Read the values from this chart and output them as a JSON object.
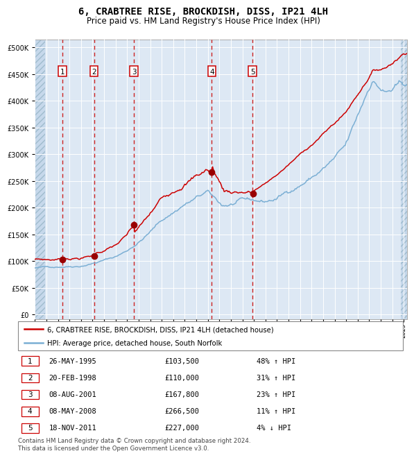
{
  "title": "6, CRABTREE RISE, BROCKDISH, DISS, IP21 4LH",
  "subtitle": "Price paid vs. HM Land Registry's House Price Index (HPI)",
  "title_fontsize": 10,
  "subtitle_fontsize": 8.5,
  "plot_bg_color": "#dde8f4",
  "hatch_color": "#b8cce4",
  "grid_color": "#ffffff",
  "red_line_color": "#cc0000",
  "blue_line_color": "#7bafd4",
  "sale_marker_color": "#990000",
  "dashed_line_color": "#cc0000",
  "yticks": [
    0,
    50000,
    100000,
    150000,
    200000,
    250000,
    300000,
    350000,
    400000,
    450000,
    500000
  ],
  "ylim": [
    -8000,
    515000
  ],
  "xlim_start": 1993.0,
  "xlim_end": 2025.3,
  "sales": [
    {
      "num": 1,
      "x": 1995.4,
      "price": 103500
    },
    {
      "num": 2,
      "x": 1998.13,
      "price": 110000
    },
    {
      "num": 3,
      "x": 2001.6,
      "price": 167800
    },
    {
      "num": 4,
      "x": 2008.35,
      "price": 266500
    },
    {
      "num": 5,
      "x": 2011.88,
      "price": 227000
    }
  ],
  "table_rows": [
    {
      "num": 1,
      "date": "26-MAY-1995",
      "price": "£103,500",
      "hpi": "48% ↑ HPI"
    },
    {
      "num": 2,
      "date": "20-FEB-1998",
      "price": "£110,000",
      "hpi": "31% ↑ HPI"
    },
    {
      "num": 3,
      "date": "08-AUG-2001",
      "price": "£167,800",
      "hpi": "23% ↑ HPI"
    },
    {
      "num": 4,
      "date": "08-MAY-2008",
      "price": "£266,500",
      "hpi": "11% ↑ HPI"
    },
    {
      "num": 5,
      "date": "18-NOV-2011",
      "price": "£227,000",
      "hpi": "4% ↓ HPI"
    }
  ],
  "legend_entries": [
    "6, CRABTREE RISE, BROCKDISH, DISS, IP21 4LH (detached house)",
    "HPI: Average price, detached house, South Norfolk"
  ],
  "footnote": "Contains HM Land Registry data © Crown copyright and database right 2024.\nThis data is licensed under the Open Government Licence v3.0."
}
